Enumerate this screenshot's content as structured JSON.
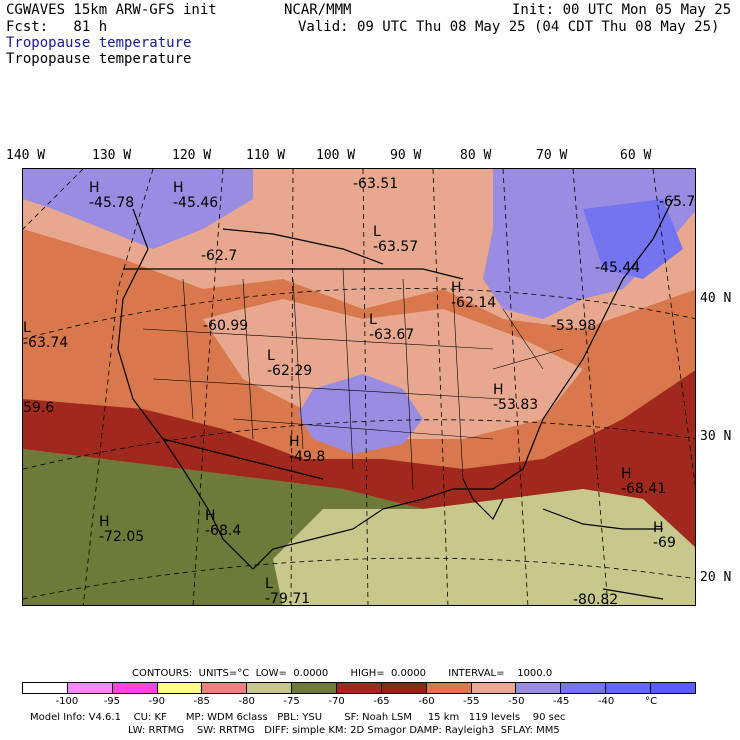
{
  "header": {
    "model": "CGWAVES 15km ARW-GFS init",
    "org": "NCAR/MMM",
    "init": "Init: 00 UTC Mon 05 May 25",
    "fcst": "Fcst:   81 h",
    "valid": "Valid: 09 UTC Thu 08 May 25 (04 CDT Thu 08 May 25)",
    "field_title_blue": "Tropopause temperature",
    "field_title_black": "Tropopause temperature"
  },
  "axes": {
    "longitudes": [
      "140 W",
      "130 W",
      "120 W",
      "110 W",
      "100 W",
      "90 W",
      "80 W",
      "70 W",
      "60 W"
    ],
    "latitudes": [
      "40 N",
      "30 N",
      "20 N"
    ]
  },
  "map_labels": [
    {
      "mark": "H",
      "value": "-45.78"
    },
    {
      "mark": "H",
      "value": "-45.46"
    },
    {
      "mark": "",
      "value": "-63.51"
    },
    {
      "mark": "L",
      "value": "-63.57"
    },
    {
      "mark": "",
      "value": "-62.7"
    },
    {
      "mark": "",
      "value": "-65.7"
    },
    {
      "mark": "",
      "value": "-45.44"
    },
    {
      "mark": "H",
      "value": "-62.14"
    },
    {
      "mark": "",
      "value": "-53.98"
    },
    {
      "mark": "",
      "value": "-60.99"
    },
    {
      "mark": "L",
      "value": "-63.67"
    },
    {
      "mark": "L",
      "value": "-63.74"
    },
    {
      "mark": "L",
      "value": "-62.29"
    },
    {
      "mark": "",
      "value": "59.6"
    },
    {
      "mark": "H",
      "value": "-53.83"
    },
    {
      "mark": "H",
      "value": "-49.8"
    },
    {
      "mark": "H",
      "value": "-68.41"
    },
    {
      "mark": "H",
      "value": "-72.05"
    },
    {
      "mark": "H",
      "value": "-68.4"
    },
    {
      "mark": "H",
      "value": "-69"
    },
    {
      "mark": "L",
      "value": "-79.71"
    },
    {
      "mark": "",
      "value": "-80.82"
    }
  ],
  "contour_info": "CONTOURS:  UNITS=°C  LOW=  0.0000       HIGH=  0.0000       INTERVAL=    1000.0",
  "colorbar": {
    "colors": [
      "#ffffff",
      "#ff88ff",
      "#ff44dd",
      "#ffff88",
      "#f08080",
      "#c8c88c",
      "#6e7a3a",
      "#a0281c",
      "#8c2814",
      "#d8784c",
      "#e8a890",
      "#9a8ce0",
      "#7474f0",
      "#6464ff",
      "#5a5aff"
    ],
    "ticks": [
      "-100",
      "-95",
      "-90",
      "-85",
      "-80",
      "-75",
      "-70",
      "-65",
      "-60",
      "-55",
      "-50",
      "-45",
      "-40",
      "°C"
    ]
  },
  "footer": {
    "line1": "Model Info: V4.6.1    CU: KF      MP: WDM 6class   PBL: YSU       SF: Noah LSM     15 km   119 levels    90 sec",
    "line2": "LW: RRTMG    SW: RRTMG   DIFF: simple KM: 2D Smagor DAMP: Rayleigh3  SFLAY: MM5"
  }
}
